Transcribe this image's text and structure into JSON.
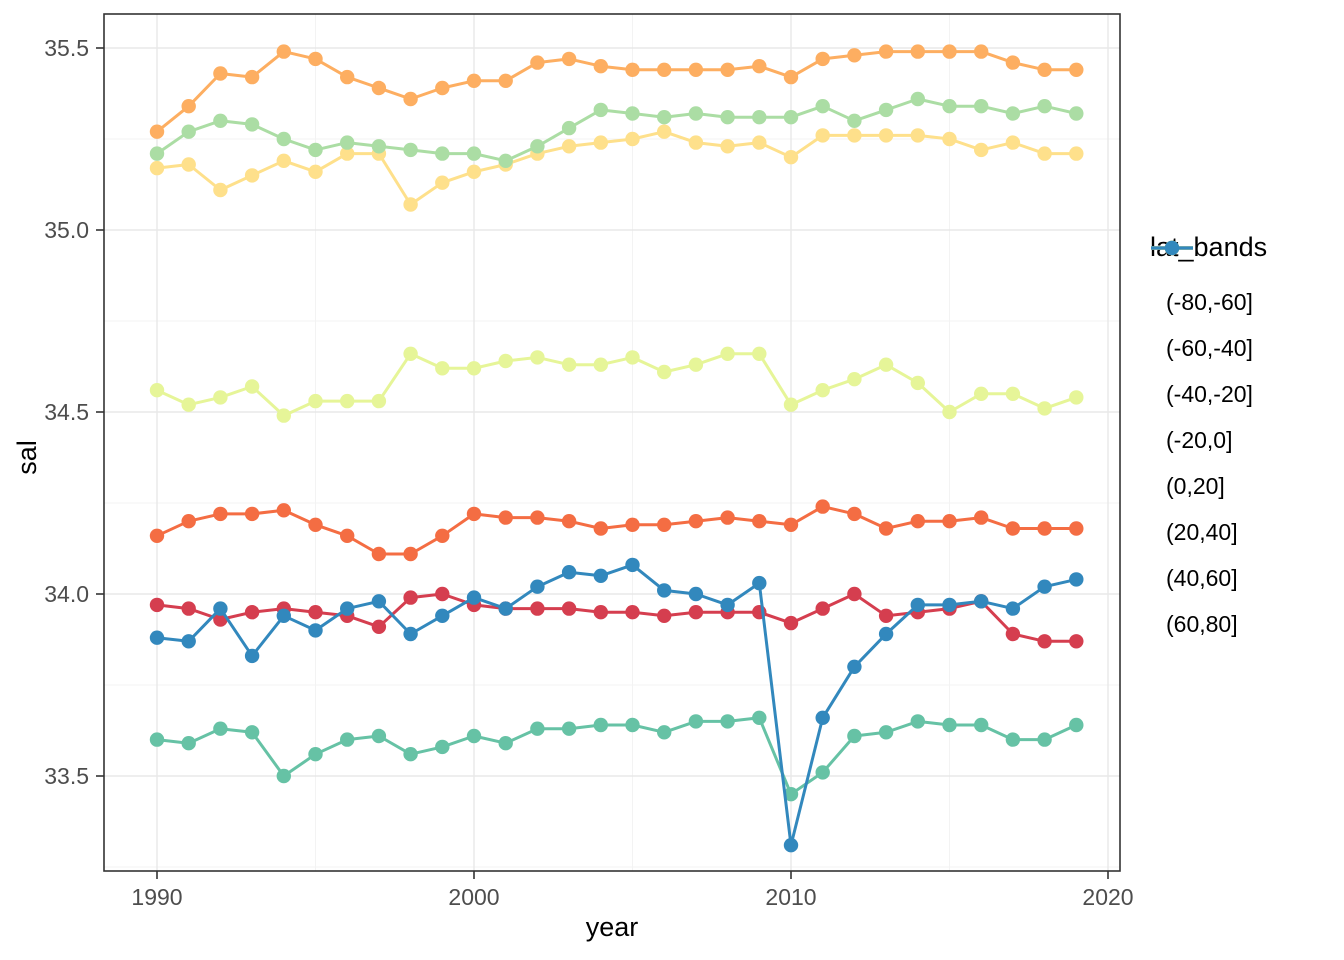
{
  "figure": {
    "background": "#ffffff"
  },
  "panel": {
    "border_color": "#333333",
    "grid_major_color": "#e8e8e8",
    "grid_minor_color": "#f3f3f3",
    "tick_color": "#333333"
  },
  "axes": {
    "x_label": "year",
    "y_label": "sal",
    "x_tick_labels": [
      "1990",
      "2000",
      "2010",
      "2020"
    ],
    "y_tick_labels": [
      "33.5",
      "34.0",
      "34.5",
      "35.0",
      "35.5"
    ]
  },
  "legend": {
    "title": "lat_bands",
    "entries": [
      "(-80,-60]",
      "(-60,-40]",
      "(-40,-20]",
      "(-20,0]",
      "(0,20]",
      "(20,40]",
      "(40,60]",
      "(60,80]"
    ]
  },
  "chart_data": {
    "type": "line",
    "title": "",
    "xlabel": "year",
    "ylabel": "sal",
    "grid": true,
    "legend_position": "right",
    "xlim": [
      1988.3,
      2020.4
    ],
    "ylim": [
      33.27,
      35.59
    ],
    "x_ticks": [
      1990,
      2000,
      2010,
      2020
    ],
    "x_minor_ticks": [
      1995,
      2005,
      2015
    ],
    "y_ticks": [
      33.5,
      34.0,
      34.5,
      35.0,
      35.5
    ],
    "y_minor_ticks": [
      33.25,
      33.75,
      34.25,
      34.75,
      35.25
    ],
    "x": [
      1990,
      1991,
      1992,
      1993,
      1994,
      1995,
      1996,
      1997,
      1998,
      1999,
      2000,
      2001,
      2002,
      2003,
      2004,
      2005,
      2006,
      2007,
      2008,
      2009,
      2010,
      2011,
      2012,
      2013,
      2014,
      2015,
      2016,
      2017,
      2018,
      2019
    ],
    "series": [
      {
        "name": "(-80,-60]",
        "color": "#d53e4f",
        "values": [
          33.97,
          33.96,
          33.93,
          33.95,
          33.96,
          33.95,
          33.94,
          33.91,
          33.99,
          34.0,
          33.97,
          33.96,
          33.96,
          33.96,
          33.95,
          33.95,
          33.94,
          33.95,
          33.95,
          33.95,
          33.92,
          33.96,
          34.0,
          33.94,
          33.95,
          33.96,
          33.98,
          33.89,
          33.87,
          33.87
        ]
      },
      {
        "name": "(-60,-40]",
        "color": "#f46d43",
        "values": [
          34.16,
          34.2,
          34.22,
          34.22,
          34.23,
          34.19,
          34.16,
          34.11,
          34.11,
          34.16,
          34.22,
          34.21,
          34.21,
          34.2,
          34.18,
          34.19,
          34.19,
          34.2,
          34.21,
          34.2,
          34.19,
          34.24,
          34.22,
          34.18,
          34.2,
          34.2,
          34.21,
          34.18,
          34.18,
          34.18
        ]
      },
      {
        "name": "(-40,-20]",
        "color": "#fdae61",
        "values": [
          35.27,
          35.34,
          35.43,
          35.42,
          35.49,
          35.47,
          35.42,
          35.39,
          35.36,
          35.39,
          35.41,
          35.41,
          35.46,
          35.47,
          35.45,
          35.44,
          35.44,
          35.44,
          35.44,
          35.45,
          35.42,
          35.47,
          35.48,
          35.49,
          35.49,
          35.49,
          35.49,
          35.46,
          35.44,
          35.44
        ]
      },
      {
        "name": "(-20,0]",
        "color": "#fee08b",
        "values": [
          35.17,
          35.18,
          35.11,
          35.15,
          35.19,
          35.16,
          35.21,
          35.21,
          35.07,
          35.13,
          35.16,
          35.18,
          35.21,
          35.23,
          35.24,
          35.25,
          35.27,
          35.24,
          35.23,
          35.24,
          35.2,
          35.26,
          35.26,
          35.26,
          35.26,
          35.25,
          35.22,
          35.24,
          35.21,
          35.21
        ]
      },
      {
        "name": "(0,20]",
        "color": "#e6f598",
        "values": [
          34.56,
          34.52,
          34.54,
          34.57,
          34.49,
          34.53,
          34.53,
          34.53,
          34.66,
          34.62,
          34.62,
          34.64,
          34.65,
          34.63,
          34.63,
          34.65,
          34.61,
          34.63,
          34.66,
          34.66,
          34.52,
          34.56,
          34.59,
          34.63,
          34.58,
          34.5,
          34.55,
          34.55,
          34.51,
          34.54
        ]
      },
      {
        "name": "(20,40]",
        "color": "#abdda4",
        "values": [
          35.21,
          35.27,
          35.3,
          35.29,
          35.25,
          35.22,
          35.24,
          35.23,
          35.22,
          35.21,
          35.21,
          35.19,
          35.23,
          35.28,
          35.33,
          35.32,
          35.31,
          35.32,
          35.31,
          35.31,
          35.31,
          35.34,
          35.3,
          35.33,
          35.36,
          35.34,
          35.34,
          35.32,
          35.34,
          35.32
        ]
      },
      {
        "name": "(40,60]",
        "color": "#66c2a5",
        "values": [
          33.6,
          33.59,
          33.63,
          33.62,
          33.5,
          33.56,
          33.6,
          33.61,
          33.56,
          33.58,
          33.61,
          33.59,
          33.63,
          33.63,
          33.64,
          33.64,
          33.62,
          33.65,
          33.65,
          33.66,
          33.45,
          33.51,
          33.61,
          33.62,
          33.65,
          33.64,
          33.64,
          33.6,
          33.6,
          33.64
        ]
      },
      {
        "name": "(60,80]",
        "color": "#3288bd",
        "values": [
          33.88,
          33.87,
          33.96,
          33.83,
          33.94,
          33.9,
          33.96,
          33.98,
          33.89,
          33.94,
          33.99,
          33.96,
          34.02,
          34.06,
          34.05,
          34.08,
          34.01,
          34.0,
          33.97,
          34.03,
          33.31,
          33.66,
          33.8,
          33.89,
          33.97,
          33.97,
          33.98,
          33.96,
          34.02,
          34.04
        ]
      }
    ]
  }
}
